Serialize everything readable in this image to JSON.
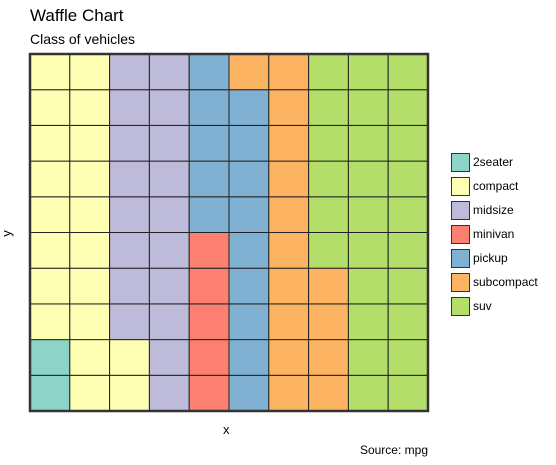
{
  "chart_data": {
    "type": "waffle",
    "title": "Waffle Chart",
    "subtitle": "Class of vehicles",
    "xlabel": "x",
    "ylabel": "y",
    "caption": "Source: mpg",
    "grid_columns": 10,
    "grid_rows": 10,
    "legend_position": "right",
    "categories": [
      "2seater",
      "compact",
      "midsize",
      "minivan",
      "pickup",
      "subcompact",
      "suv"
    ],
    "values": [
      2,
      20,
      18,
      5,
      14,
      15,
      26
    ],
    "colors": [
      "#8dd3c7",
      "#ffffb3",
      "#bebada",
      "#fb8072",
      "#80b1d3",
      "#fdb462",
      "#b3de69"
    ]
  }
}
